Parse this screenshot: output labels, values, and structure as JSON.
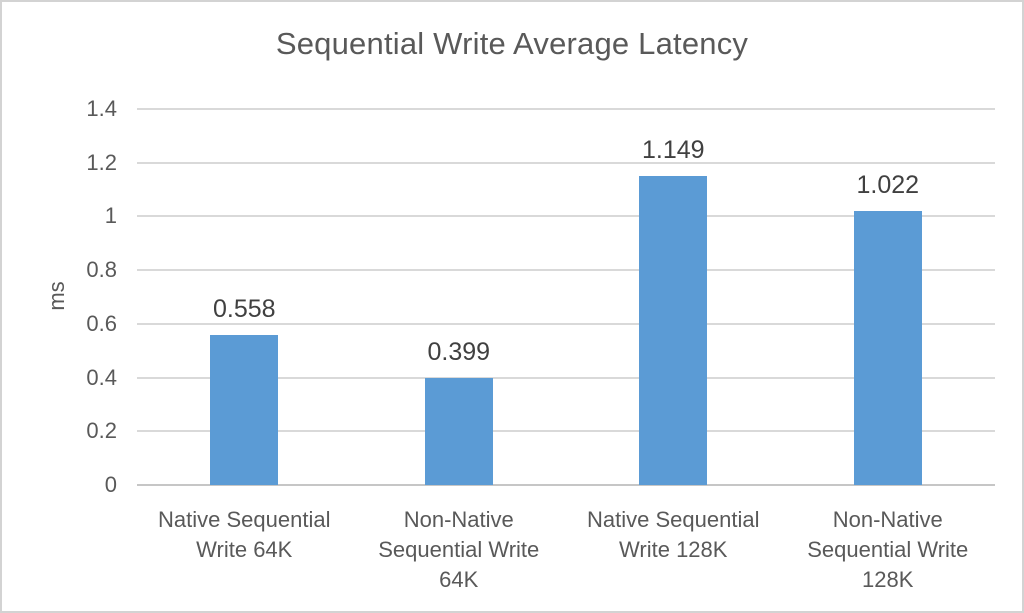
{
  "window": {
    "background": "#ffffff",
    "border_color": "#d3d3d3"
  },
  "chart_data": {
    "type": "bar",
    "title": "Sequential Write Average Latency",
    "xlabel": "",
    "ylabel": "ms",
    "categories": [
      "Native Sequential Write 64K",
      "Non-Native Sequential Write 64K",
      "Native Sequential Write 128K",
      "Non-Native Sequential Write 128K"
    ],
    "category_line_breaks": [
      [
        "Native Sequential",
        "Write 64K"
      ],
      [
        "Non-Native",
        "Sequential Write",
        "64K"
      ],
      [
        "Native Sequential",
        "Write 128K"
      ],
      [
        "Non-Native",
        "Sequential Write",
        "128K"
      ]
    ],
    "values": [
      0.558,
      0.399,
      1.149,
      1.022
    ],
    "data_labels": [
      "0.558",
      "0.399",
      "1.149",
      "1.022"
    ],
    "ylim": [
      0,
      1.4
    ],
    "ytick_step": 0.2,
    "yticks": [
      "0",
      "0.2",
      "0.4",
      "0.6",
      "0.8",
      "1",
      "1.2",
      "1.4"
    ],
    "grid": "horizontal-gridlines-on",
    "legend": "none",
    "bar_color": "#5B9BD5",
    "gridline_color": "#D9D9D9",
    "axis_line_color": "#C6C6C6",
    "title_color": "#595959",
    "tick_color": "#595959",
    "category_color": "#595959",
    "data_label_color": "#404040"
  }
}
